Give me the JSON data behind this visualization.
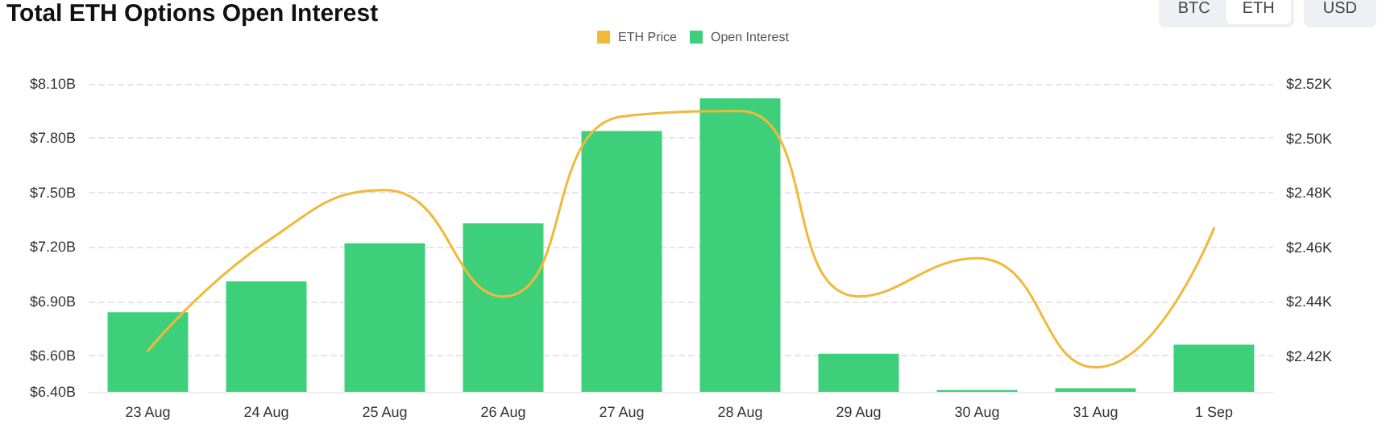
{
  "chart_data": {
    "type": "bar",
    "title": "Total ETH Options Open Interest",
    "annotations": [
      "BTC",
      "ETH",
      "USD"
    ],
    "categories": [
      "23 Aug",
      "24 Aug",
      "25 Aug",
      "26 Aug",
      "27 Aug",
      "28 Aug",
      "29 Aug",
      "30 Aug",
      "31 Aug",
      "1 Sep"
    ],
    "series": [
      {
        "name": "ETH Price",
        "type": "line",
        "axis": "y2",
        "color": "#f0b93b",
        "values": [
          2.422,
          2.462,
          2.481,
          2.442,
          2.508,
          2.51,
          2.442,
          2.456,
          2.416,
          2.467
        ]
      },
      {
        "name": "Open Interest",
        "type": "bar",
        "color": "#3ecf7a",
        "values": [
          6.84,
          7.01,
          7.22,
          7.33,
          7.84,
          8.02,
          6.61,
          6.41,
          6.42,
          6.66
        ]
      }
    ],
    "ylim": [
      6.4,
      8.1
    ],
    "yticks": [
      {
        "value": 6.4,
        "label": "$6.40B"
      },
      {
        "value": 6.6,
        "label": "$6.60B"
      },
      {
        "value": 6.9,
        "label": "$6.90B"
      },
      {
        "value": 7.2,
        "label": "$7.20B"
      },
      {
        "value": 7.5,
        "label": "$7.50B"
      },
      {
        "value": 7.8,
        "label": "$7.80B"
      },
      {
        "value": 8.1,
        "label": "$8.10B"
      }
    ],
    "y2lim": [
      2.407,
      2.52
    ],
    "y2ticks": [
      {
        "value": 2.42,
        "label": "$2.42K"
      },
      {
        "value": 2.44,
        "label": "$2.44K"
      },
      {
        "value": 2.46,
        "label": "$2.46K"
      },
      {
        "value": 2.48,
        "label": "$2.48K"
      },
      {
        "value": 2.5,
        "label": "$2.50K"
      },
      {
        "value": 2.52,
        "label": "$2.52K"
      }
    ],
    "grid": "y",
    "legend": "top",
    "marker": "none",
    "line_style": "solid"
  }
}
